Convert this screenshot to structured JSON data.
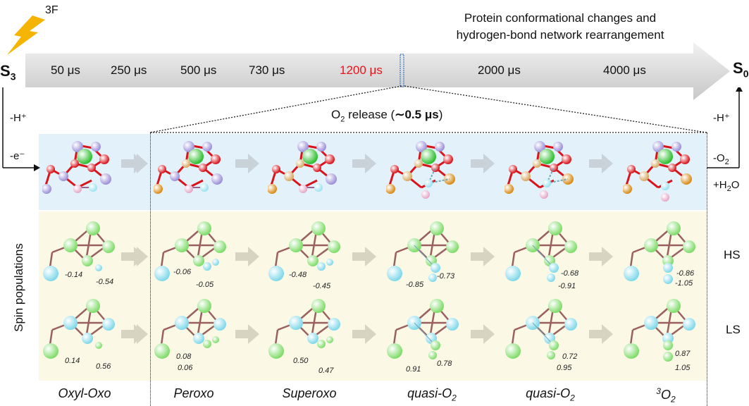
{
  "header": {
    "flash_label": "3F",
    "title_line1": "Protein conformational changes and",
    "title_line2": "hydrogen-bond network rearrangement",
    "start_state": "S",
    "start_state_sub": "3",
    "end_state": "S",
    "end_state_sub": "0"
  },
  "timeline": {
    "times": [
      "50 μs",
      "250 μs",
      "500 μs",
      "730 μs",
      "1200 μs",
      "2000 μs",
      "4000 μs"
    ],
    "highlight_color": "#e8141c"
  },
  "release": {
    "prefix": "O",
    "sub": "2",
    "middle": " release (",
    "value": "∼0.5 μs",
    "suffix": ")"
  },
  "left_side": {
    "proton": "-H⁺",
    "electron": "-e⁻"
  },
  "right_side": {
    "proton": "-H⁺",
    "o2": "-O",
    "o2_sub": "2",
    "water": "+H",
    "water_sub": "2",
    "water_end": "O"
  },
  "row_labels": {
    "spin_populations": "Spin populations",
    "hs": "HS",
    "ls": "LS"
  },
  "hs_values": [
    [
      "-0.14",
      "-0.54"
    ],
    [
      "-0.06",
      "-0.05"
    ],
    [
      "-0.48",
      "-0.45"
    ],
    [
      "-0.85",
      "-0.73"
    ],
    [
      "-0.68",
      "-0.91"
    ],
    [
      "-0.86",
      "-1.05"
    ]
  ],
  "ls_values": [
    [
      "0.14",
      "0.56"
    ],
    [
      "0.08",
      "0.06"
    ],
    [
      "0.50",
      "0.47"
    ],
    [
      "0.91",
      "0.78"
    ],
    [
      "0.72",
      "0.95"
    ],
    [
      "0.87",
      "1.05"
    ]
  ],
  "states": [
    {
      "name": "Oxyl-Oxo",
      "sub": "",
      "sup": ""
    },
    {
      "name": "Peroxo",
      "sub": "",
      "sup": ""
    },
    {
      "name": "Superoxo",
      "sub": "",
      "sup": ""
    },
    {
      "name": "quasi-O",
      "sub": "2",
      "sup": ""
    },
    {
      "name": "quasi-O",
      "sub": "2",
      "sup": ""
    },
    {
      "name": "O",
      "sub": "2",
      "sup": "3"
    }
  ],
  "colors": {
    "mn_purple": "#9b8fd8",
    "calcium_green": "#2fbf2f",
    "oxygen_red": "#d8141c",
    "o_pink": "#e6a6c6",
    "o_cyan": "#9be2f0",
    "oxygen_orange": "#d88a14",
    "spin_green": "#7fdc6a",
    "spin_cyan": "#7fd8ea",
    "bond_brown": "#9a6060"
  }
}
